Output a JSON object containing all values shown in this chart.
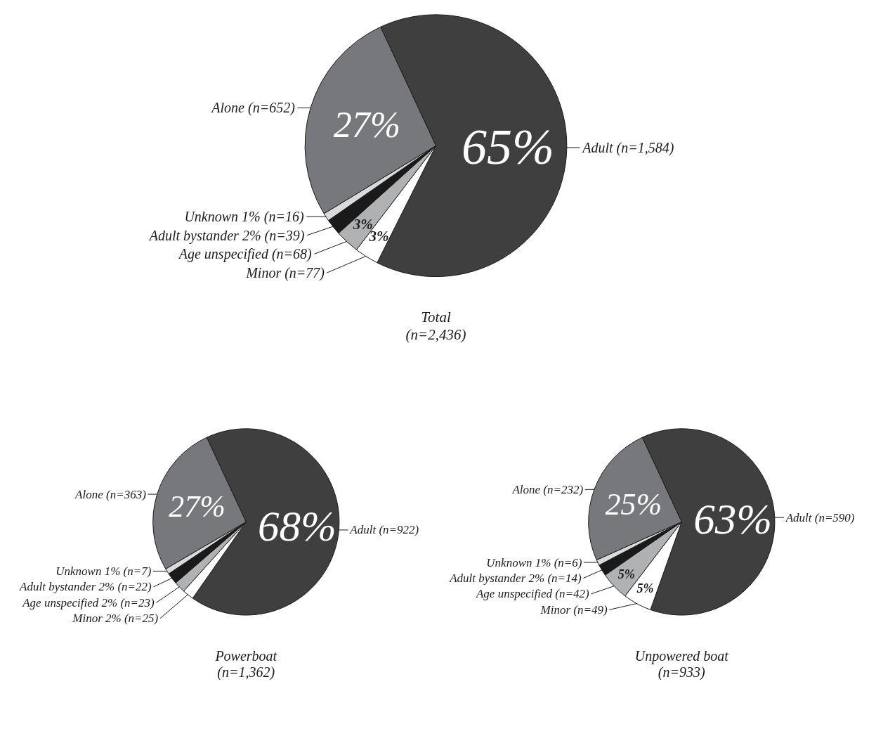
{
  "chart_data": [
    {
      "type": "pie",
      "title": "Total",
      "subtitle": "(n=2,436)",
      "categories": [
        "Adult (n=1,584)",
        "Minor (n=77)",
        "Age unspecified (n=68)",
        "Adult bystander 2% (n=39)",
        "Unknown 1% (n=16)",
        "Alone (n=652)"
      ],
      "values": [
        65,
        3,
        3,
        2,
        1,
        27
      ],
      "value_labels": [
        "65%",
        "3%",
        "3%",
        null,
        null,
        "27%"
      ],
      "colors": [
        "#3f3f3f",
        "#ffffff",
        "#b0b1b3",
        "#1a1a1a",
        "#d9dadb",
        "#77787b"
      ]
    },
    {
      "type": "pie",
      "title": "Powerboat",
      "subtitle": "(n=1,362)",
      "categories": [
        "Adult (n=922)",
        "Minor 2% (n=25)",
        "Age unspecified 2% (n=23)",
        "Adult bystander 2% (n=22)",
        "Unknown 1% (n=7)",
        "Alone (n=363)"
      ],
      "values": [
        68,
        2,
        2,
        2,
        1,
        27
      ],
      "value_labels": [
        "68%",
        null,
        null,
        null,
        null,
        "27%"
      ],
      "colors": [
        "#3f3f3f",
        "#ffffff",
        "#b0b1b3",
        "#1a1a1a",
        "#d9dadb",
        "#77787b"
      ]
    },
    {
      "type": "pie",
      "title": "Unpowered boat",
      "subtitle": "(n=933)",
      "categories": [
        "Adult (n=590)",
        "Minor (n=49)",
        "Age unspecified (n=42)",
        "Adult bystander 2% (n=14)",
        "Unknown 1% (n=6)",
        "Alone (n=232)"
      ],
      "values": [
        63,
        5,
        5,
        2,
        1,
        25
      ],
      "value_labels": [
        "63%",
        "5%",
        "5%",
        null,
        null,
        "25%"
      ],
      "colors": [
        "#3f3f3f",
        "#ffffff",
        "#b0b1b3",
        "#1a1a1a",
        "#d9dadb",
        "#77787b"
      ]
    }
  ]
}
